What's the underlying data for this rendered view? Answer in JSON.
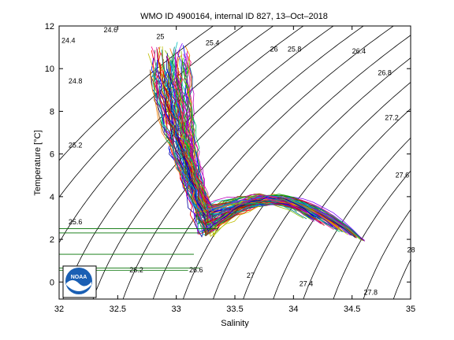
{
  "chart_data": {
    "type": "line",
    "title": "WMO ID 4900164, internal ID 827, 13–Oct–2018",
    "xlabel": "Salinity",
    "ylabel": "Temperature [°C]",
    "xlim": [
      32,
      35
    ],
    "ylim": [
      -0.8,
      12
    ],
    "xticks": [
      "32",
      "32.5",
      "33",
      "33.5",
      "34",
      "34.5",
      "35"
    ],
    "yticks": [
      "0",
      "2",
      "4",
      "6",
      "8",
      "10",
      "12"
    ],
    "grid": false,
    "density_contours": [
      {
        "sigma": 24.4,
        "label": "24.4",
        "label_pos": [
          32.02,
          11.2
        ]
      },
      {
        "sigma": 24.6,
        "label": "24.6",
        "label_pos": [
          32.38,
          11.7
        ]
      },
      {
        "sigma": 24.8,
        "label": "24.8",
        "label_pos": [
          32.08,
          9.3
        ]
      },
      {
        "sigma": 25,
        "label": "25",
        "label_pos": [
          32.83,
          11.4
        ]
      },
      {
        "sigma": 25.2,
        "label": "25.2",
        "label_pos": [
          32.08,
          6.3
        ]
      },
      {
        "sigma": 25.4,
        "label": "25.4",
        "label_pos": [
          33.25,
          11.1
        ]
      },
      {
        "sigma": 25.6,
        "label": "25.6",
        "label_pos": [
          32.08,
          2.7
        ]
      },
      {
        "sigma": 25.8,
        "label": "25.8",
        "label_pos": [
          33.95,
          10.8
        ]
      },
      {
        "sigma": 26,
        "label": "26",
        "label_pos": [
          33.8,
          10.8
        ]
      },
      {
        "sigma": 26.2,
        "label": "26.2",
        "label_pos": [
          32.6,
          0.45
        ]
      },
      {
        "sigma": 26.4,
        "label": "26.4",
        "label_pos": [
          34.5,
          10.7
        ]
      },
      {
        "sigma": 26.6,
        "label": "26.6",
        "label_pos": [
          33.11,
          0.45
        ]
      },
      {
        "sigma": 26.8,
        "label": "26.8",
        "label_pos": [
          34.72,
          9.7
        ]
      },
      {
        "sigma": 27,
        "label": "27",
        "label_pos": [
          33.6,
          0.2
        ]
      },
      {
        "sigma": 27.2,
        "label": "27.2",
        "label_pos": [
          34.78,
          7.6
        ]
      },
      {
        "sigma": 27.4,
        "label": "27.4",
        "label_pos": [
          34.05,
          -0.2
        ]
      },
      {
        "sigma": 27.6,
        "label": "27.6",
        "label_pos": [
          34.87,
          4.9
        ]
      },
      {
        "sigma": 27.8,
        "label": "27.8",
        "label_pos": [
          34.6,
          -0.6
        ]
      },
      {
        "sigma": 28,
        "label": "28",
        "label_pos": [
          34.97,
          1.4
        ]
      }
    ],
    "profile_count": 90,
    "profile_shape": {
      "surface_cluster": {
        "s": [
          32.78,
          33.12
        ],
        "t": [
          9.5,
          11.2
        ]
      },
      "bend": {
        "s": [
          33.18,
          33.32
        ],
        "t": [
          2.1,
          3.6
        ]
      },
      "subsurface_max": {
        "s": [
          33.8
        ],
        "t": [
          4.1
        ]
      },
      "deep_end": {
        "s": [
          34.62
        ],
        "t": [
          1.9
        ]
      }
    },
    "noaa_logo_text": "NOAA"
  }
}
